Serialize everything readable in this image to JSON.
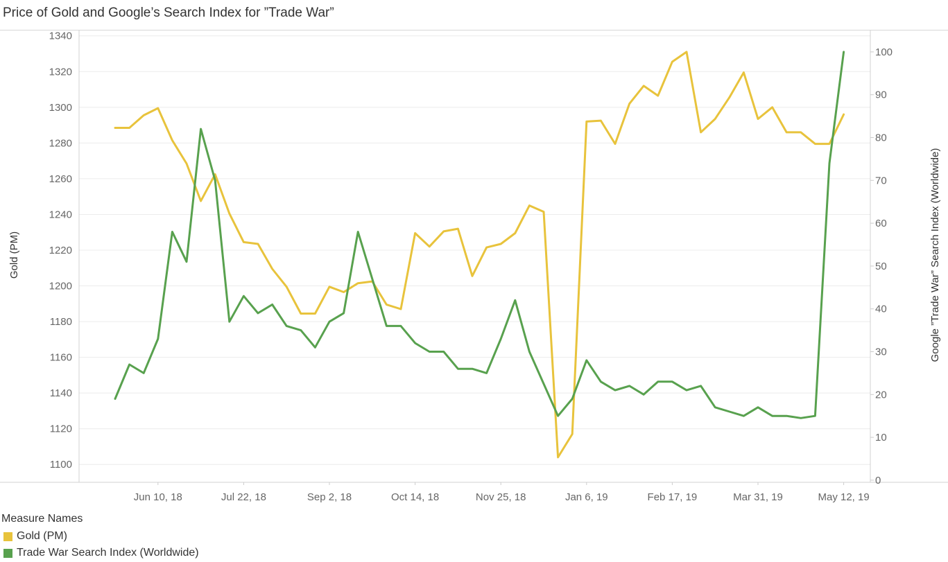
{
  "title": "Price of Gold and Google’s Search Index for ”Trade War”",
  "legend": {
    "title": "Measure Names",
    "items": [
      {
        "label": "Gold (PM)",
        "color": "#e8c33c"
      },
      {
        "label": "Trade War Search Index (Worldwide)",
        "color": "#58a14e"
      }
    ]
  },
  "chart_data": {
    "type": "line",
    "x_axis": {
      "tick_labels": [
        "Jun 10, 18",
        "Jul 22, 18",
        "Sep 2, 18",
        "Oct 14, 18",
        "Nov 25, 18",
        "Jan 6, 19",
        "Feb 17, 19",
        "Mar 31, 19",
        "May 12, 19"
      ]
    },
    "x": [
      "2018-05-20",
      "2018-05-27",
      "2018-06-03",
      "2018-06-10",
      "2018-06-17",
      "2018-06-24",
      "2018-07-01",
      "2018-07-08",
      "2018-07-15",
      "2018-07-22",
      "2018-07-29",
      "2018-08-05",
      "2018-08-12",
      "2018-08-19",
      "2018-08-26",
      "2018-09-02",
      "2018-09-09",
      "2018-09-16",
      "2018-09-23",
      "2018-09-30",
      "2018-10-07",
      "2018-10-14",
      "2018-10-21",
      "2018-10-28",
      "2018-11-04",
      "2018-11-11",
      "2018-11-18",
      "2018-11-25",
      "2018-12-02",
      "2018-12-09",
      "2018-12-16",
      "2018-12-23",
      "2018-12-30",
      "2019-01-06",
      "2019-01-13",
      "2019-01-20",
      "2019-01-27",
      "2019-02-03",
      "2019-02-10",
      "2019-02-17",
      "2019-02-24",
      "2019-03-03",
      "2019-03-10",
      "2019-03-17",
      "2019-03-24",
      "2019-03-31",
      "2019-04-07",
      "2019-04-14",
      "2019-04-21",
      "2019-04-28",
      "2019-05-05",
      "2019-05-12"
    ],
    "left_axis": {
      "title": "Gold (PM)",
      "range": [
        1090,
        1343
      ],
      "ticks": [
        1100,
        1120,
        1140,
        1160,
        1180,
        1200,
        1220,
        1240,
        1260,
        1280,
        1300,
        1320,
        1340
      ]
    },
    "right_axis": {
      "title": "Google ”Trade War” Search Index (Worldwide)",
      "range": [
        -0.5,
        105
      ],
      "ticks": [
        0,
        10,
        20,
        30,
        40,
        50,
        60,
        70,
        80,
        90,
        100
      ]
    },
    "grid": "horizontal",
    "series": [
      {
        "name": "Gold (PM)",
        "axis": "left",
        "color": "#e8c33c",
        "values": [
          1288.5,
          1288.5,
          1295.5,
          1299.5,
          1281.5,
          1268.5,
          1247.5,
          1262.5,
          1240.5,
          1224.5,
          1223.5,
          1209.5,
          1199.5,
          1184.5,
          1184.5,
          1199.5,
          1196.5,
          1201.5,
          1202.5,
          1189.5,
          1187.0,
          1229.5,
          1222.0,
          1230.5,
          1232.0,
          1205.5,
          1221.5,
          1223.5,
          1229.5,
          1245.0,
          1241.5,
          1104.0,
          1117.0,
          1292.0,
          1292.5,
          1279.5,
          1302.0,
          1312.0,
          1306.5,
          1325.5,
          1331.0,
          1286.0,
          1293.5,
          1305.5,
          1319.5,
          1293.5,
          1300.0,
          1286.0,
          1286.0,
          1279.5,
          1279.5,
          1296.0
        ]
      },
      {
        "name": "Trade War Search Index (Worldwide)",
        "axis": "right",
        "color": "#58a14e",
        "values": [
          19,
          27,
          25,
          33,
          58,
          51,
          82,
          70,
          37,
          43,
          39,
          41,
          36,
          35,
          31,
          37,
          39,
          58,
          47,
          36,
          36,
          32,
          30,
          30,
          26,
          26,
          25,
          33,
          42,
          30,
          22.5,
          15,
          19,
          28,
          23,
          21,
          22,
          20,
          23,
          23,
          21,
          22,
          17,
          16,
          15,
          17,
          15,
          15,
          14.5,
          15,
          74,
          100
        ]
      }
    ]
  }
}
